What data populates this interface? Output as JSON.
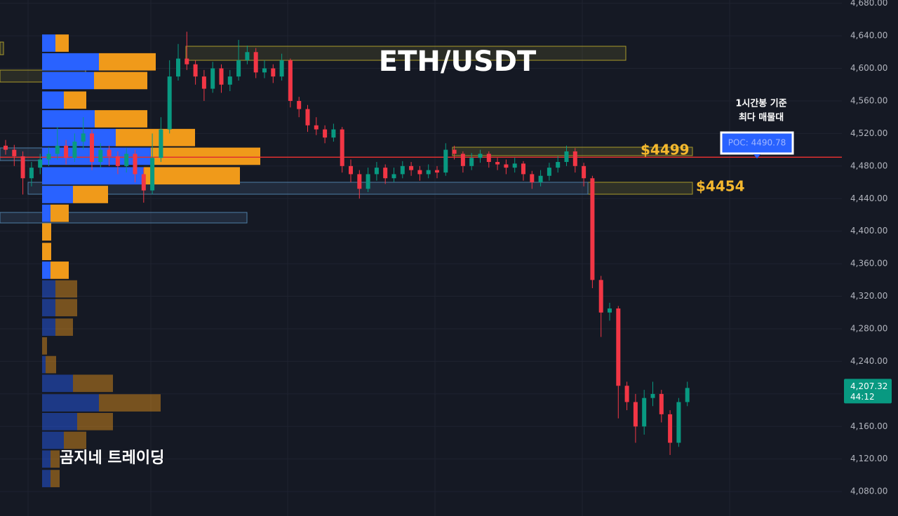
{
  "chart_data": {
    "type": "candlestick",
    "title": "ETH/USDT",
    "open": [
      4505,
      4500,
      4492,
      4465,
      4478,
      4488,
      4495,
      4505,
      4490,
      4510,
      4520,
      4485,
      4500,
      4492,
      4480,
      4495,
      4470,
      4450,
      4490,
      4525,
      4590,
      4612,
      4605,
      4590,
      4575,
      4600,
      4580,
      4590,
      4610,
      4620,
      4595,
      4600,
      4590,
      4610,
      4560,
      4550,
      4530,
      4525,
      4515,
      4525,
      4480,
      4470,
      4452,
      4470,
      4478,
      4465,
      4470,
      4480,
      4475,
      4470,
      4475,
      4472,
      4500,
      4495,
      4480,
      4490,
      4495,
      4485,
      4482,
      4478,
      4483,
      4470,
      4460,
      4468,
      4478,
      4485,
      4498,
      4480,
      4465,
      4340,
      4300,
      4305,
      4210,
      4190,
      4160,
      4195,
      4200,
      4175,
      4140,
      4190
    ],
    "high": [
      4512,
      4506,
      4498,
      4485,
      4495,
      4503,
      4528,
      4512,
      4520,
      4540,
      4525,
      4508,
      4505,
      4498,
      4502,
      4500,
      4478,
      4520,
      4540,
      4610,
      4630,
      4645,
      4610,
      4598,
      4608,
      4605,
      4598,
      4635,
      4628,
      4625,
      4610,
      4605,
      4618,
      4612,
      4565,
      4555,
      4540,
      4530,
      4532,
      4528,
      4488,
      4475,
      4478,
      4485,
      4482,
      4478,
      4486,
      4485,
      4480,
      4482,
      4480,
      4508,
      4505,
      4498,
      4496,
      4500,
      4498,
      4490,
      4488,
      4490,
      4486,
      4474,
      4475,
      4484,
      4492,
      4505,
      4502,
      4484,
      4468,
      4345,
      4312,
      4308,
      4215,
      4200,
      4205,
      4215,
      4205,
      4180,
      4195,
      4215
    ],
    "low": [
      4494,
      4480,
      4445,
      4455,
      4470,
      4480,
      4488,
      4482,
      4485,
      4500,
      4475,
      4478,
      4480,
      4470,
      4472,
      4460,
      4435,
      4445,
      4485,
      4520,
      4585,
      4598,
      4580,
      4560,
      4570,
      4570,
      4572,
      4585,
      4605,
      4588,
      4588,
      4582,
      4585,
      4552,
      4540,
      4522,
      4518,
      4508,
      4510,
      4472,
      4460,
      4440,
      4448,
      4462,
      4458,
      4460,
      4465,
      4468,
      4462,
      4465,
      4465,
      4468,
      4488,
      4472,
      4475,
      4484,
      4478,
      4475,
      4470,
      4472,
      4462,
      4452,
      4455,
      4462,
      4472,
      4480,
      4472,
      4455,
      4330,
      4270,
      4290,
      4170,
      4180,
      4140,
      4150,
      4185,
      4165,
      4125,
      4135,
      4185
    ],
    "close": [
      4500,
      4492,
      4465,
      4478,
      4488,
      4495,
      4505,
      4490,
      4510,
      4520,
      4485,
      4500,
      4492,
      4480,
      4495,
      4470,
      4450,
      4490,
      4525,
      4590,
      4612,
      4605,
      4590,
      4575,
      4600,
      4580,
      4590,
      4610,
      4620,
      4595,
      4600,
      4590,
      4610,
      4560,
      4550,
      4530,
      4525,
      4515,
      4525,
      4480,
      4470,
      4452,
      4470,
      4478,
      4465,
      4470,
      4480,
      4475,
      4470,
      4475,
      4472,
      4500,
      4495,
      4480,
      4490,
      4495,
      4485,
      4482,
      4478,
      4483,
      4470,
      4460,
      4468,
      4478,
      4485,
      4498,
      4480,
      4465,
      4340,
      4300,
      4305,
      4210,
      4190,
      4160,
      4195,
      4200,
      4175,
      4140,
      4190,
      4207.32
    ],
    "up_color": "#089981",
    "down_color": "#f23645",
    "ylim": [
      4050,
      4684
    ],
    "yticks": [
      {
        "value": 4080,
        "label": "4,080.00"
      },
      {
        "value": 4120,
        "label": "4,120.00"
      },
      {
        "value": 4160,
        "label": "4,160.00"
      },
      {
        "value": 4200,
        "label": "4,200.00"
      },
      {
        "value": 4240,
        "label": "4,240.00"
      },
      {
        "value": 4280,
        "label": "4,280.00"
      },
      {
        "value": 4320,
        "label": "4,320.00"
      },
      {
        "value": 4360,
        "label": "4,360.00"
      },
      {
        "value": 4400,
        "label": "4,400.00"
      },
      {
        "value": 4440,
        "label": "4,440.00"
      },
      {
        "value": 4480,
        "label": "4,480.00"
      },
      {
        "value": 4520,
        "label": "4,520.00"
      },
      {
        "value": 4560,
        "label": "4,560.00"
      },
      {
        "value": 4600,
        "label": "4,600.00"
      },
      {
        "value": 4640,
        "label": "4,640.00"
      },
      {
        "value": 4680,
        "label": "4,680.00"
      }
    ],
    "grid": true,
    "volume_profile": {
      "levels": [
        4631,
        4608,
        4585,
        4561,
        4538,
        4515,
        4492,
        4468,
        4445,
        4422,
        4399,
        4375,
        4352,
        4329,
        4306,
        4282,
        4259,
        4236,
        4213,
        4189,
        4166,
        4143,
        4120,
        4096
      ],
      "buy": [
        19,
        81,
        74,
        31,
        75,
        105,
        155,
        145,
        44,
        12,
        0,
        0,
        12,
        19,
        19,
        19,
        0,
        5,
        44,
        81,
        50,
        31,
        12,
        12
      ],
      "sell": [
        19,
        81,
        76,
        32,
        75,
        113,
        156,
        137,
        50,
        26,
        13,
        13,
        26,
        31,
        31,
        25,
        7,
        15,
        57,
        88,
        51,
        32,
        13,
        13
      ],
      "buy_color": "#2962ff",
      "sell_color": "#f09a1a"
    },
    "poc": {
      "value": 4490.78,
      "label": "POC: 4490.78",
      "color": "#e03030"
    },
    "poc_note": [
      "1시간봉 기준",
      "최다 매물대"
    ],
    "levels": [
      {
        "value": 4499,
        "label": "$4499"
      },
      {
        "value": 4454,
        "label": "$4454"
      }
    ],
    "last_price": {
      "value": 4207.32,
      "label": "4,207.32"
    },
    "countdown": "44:12",
    "watermark": "곰지네 트레이딩"
  }
}
